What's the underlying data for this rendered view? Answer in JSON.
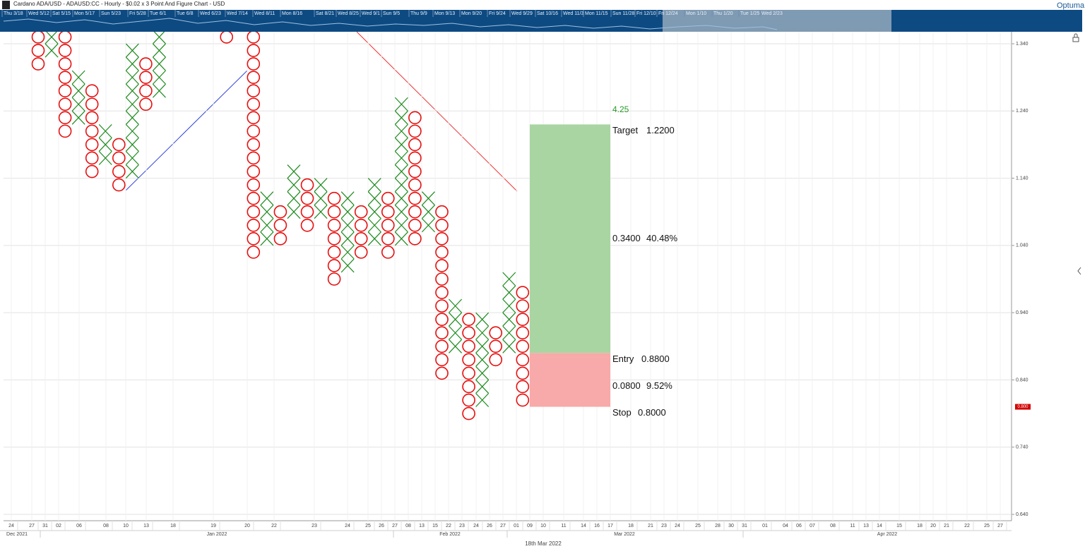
{
  "header": {
    "title": "Cardano ADA/USD - ADAUSD:CC - Hourly - $0.02 x 3 Point And Figure Chart - USD",
    "logo": "Optuma"
  },
  "navigator": {
    "labels": [
      "Thu 3/18",
      "Wed 5/12",
      "Sat 5/15",
      "Mon 5/17",
      "Sun 5/23",
      "Fri 5/28",
      "Tue 6/1",
      "Tue 6/8",
      "Wed 6/23",
      "Wed 7/14",
      "Wed 8/11",
      "Mon 8/16",
      "Sat 8/21",
      "Wed 8/25",
      "Wed 9/1",
      "Sun 9/5",
      "Thu 9/9",
      "Mon 9/13",
      "Mon 9/20",
      "Fri 9/24",
      "Wed 9/29",
      "Sat 10/16",
      "Wed 11/3",
      "Mon 11/15",
      "Sun 11/28",
      "Fri 12/10",
      "Fri 12/24",
      "Mon 1/10",
      "Thu 1/20",
      "Tue 1/25",
      "Wed 2/23"
    ]
  },
  "chart_data": {
    "type": "pnf",
    "box_size": 0.02,
    "ylim": [
      0.64,
      1.34
    ],
    "yticks": [
      {
        "value": 0.64,
        "label": "0.640"
      },
      {
        "value": 0.74,
        "label": "0.740"
      },
      {
        "value": 0.84,
        "label": "0.840"
      },
      {
        "value": 0.94,
        "label": "0.940"
      },
      {
        "value": 1.04,
        "label": "1.040"
      },
      {
        "value": 1.14,
        "label": "1.140"
      },
      {
        "value": 1.24,
        "label": "1.240"
      },
      {
        "value": 1.34,
        "label": "1.340"
      }
    ],
    "grid": true,
    "x_color": "#1a8a1a",
    "o_color": "#e81010",
    "columns": [
      {
        "x": 0,
        "kind": "O",
        "high": 1.35,
        "low": 1.31
      },
      {
        "x": 1,
        "kind": "X",
        "high": 1.35,
        "low": 1.33
      },
      {
        "x": 2,
        "kind": "O",
        "high": 1.35,
        "low": 1.21
      },
      {
        "x": 3,
        "kind": "X",
        "high": 1.29,
        "low": 1.23
      },
      {
        "x": 4,
        "kind": "O",
        "high": 1.27,
        "low": 1.15
      },
      {
        "x": 5,
        "kind": "X",
        "high": 1.21,
        "low": 1.17
      },
      {
        "x": 6,
        "kind": "O",
        "high": 1.19,
        "low": 1.13
      },
      {
        "x": 7,
        "kind": "X",
        "high": 1.33,
        "low": 1.15
      },
      {
        "x": 8,
        "kind": "O",
        "high": 1.31,
        "low": 1.25
      },
      {
        "x": 9,
        "kind": "X",
        "high": 1.35,
        "low": 1.27
      },
      {
        "x": 14,
        "kind": "O",
        "high": 1.35,
        "low": 1.35
      },
      {
        "x": 16,
        "kind": "O",
        "high": 1.35,
        "low": 1.03
      },
      {
        "x": 17,
        "kind": "X",
        "high": 1.11,
        "low": 1.05
      },
      {
        "x": 18,
        "kind": "O",
        "high": 1.09,
        "low": 1.05
      },
      {
        "x": 19,
        "kind": "X",
        "high": 1.15,
        "low": 1.09
      },
      {
        "x": 20,
        "kind": "O",
        "high": 1.13,
        "low": 1.07
      },
      {
        "x": 21,
        "kind": "X",
        "high": 1.13,
        "low": 1.09
      },
      {
        "x": 22,
        "kind": "O",
        "high": 1.11,
        "low": 0.99
      },
      {
        "x": 23,
        "kind": "X",
        "high": 1.11,
        "low": 1.01
      },
      {
        "x": 24,
        "kind": "O",
        "high": 1.09,
        "low": 1.03
      },
      {
        "x": 25,
        "kind": "X",
        "high": 1.13,
        "low": 1.05
      },
      {
        "x": 26,
        "kind": "O",
        "high": 1.11,
        "low": 1.03
      },
      {
        "x": 27,
        "kind": "X",
        "high": 1.25,
        "low": 1.05
      },
      {
        "x": 28,
        "kind": "O",
        "high": 1.23,
        "low": 1.05
      },
      {
        "x": 29,
        "kind": "X",
        "high": 1.11,
        "low": 1.07
      },
      {
        "x": 30,
        "kind": "O",
        "high": 1.09,
        "low": 0.85
      },
      {
        "x": 31,
        "kind": "X",
        "high": 0.95,
        "low": 0.89
      },
      {
        "x": 32,
        "kind": "O",
        "high": 0.93,
        "low": 0.79
      },
      {
        "x": 33,
        "kind": "X",
        "high": 0.93,
        "low": 0.81
      },
      {
        "x": 34,
        "kind": "O",
        "high": 0.91,
        "low": 0.87
      },
      {
        "x": 35,
        "kind": "X",
        "high": 0.99,
        "low": 0.89
      },
      {
        "x": 36,
        "kind": "O",
        "high": 0.97,
        "low": 0.81
      }
    ],
    "trade": {
      "count_label": "4.25",
      "target": {
        "name": "Target",
        "value": 1.22,
        "value_label": "1.2200"
      },
      "reward": {
        "amount": "0.3400",
        "percent": "40.48%"
      },
      "entry": {
        "name": "Entry",
        "value": 0.88,
        "value_label": "0.8800"
      },
      "risk": {
        "amount": "0.0800",
        "percent": "9.52%"
      },
      "stop": {
        "name": "Stop",
        "value": 0.8,
        "value_label": "0.8000"
      }
    },
    "last_price": {
      "value": 0.8,
      "label": "0.800"
    },
    "x_labels": [
      "24",
      "27",
      "31",
      "02",
      "06",
      "08",
      "10",
      "13",
      "18",
      "19",
      "20",
      "22",
      "23",
      "24",
      "25",
      "26",
      "27",
      "08",
      "13",
      "15",
      "22",
      "23",
      "24",
      "26",
      "27",
      "01",
      "09",
      "10",
      "11",
      "14",
      "16",
      "17",
      "18",
      "21",
      "23",
      "24",
      "25",
      "28",
      "30",
      "31",
      "01",
      "04",
      "06",
      "07",
      "08",
      "11",
      "13",
      "14",
      "15",
      "18",
      "20",
      "21",
      "22",
      "25",
      "27"
    ],
    "x_periods": [
      "Dec 2021",
      "Jan 2022",
      "Feb 2022",
      "Mar 2022",
      "Apr 2022"
    ],
    "date_footer": "18th Mar 2022"
  }
}
